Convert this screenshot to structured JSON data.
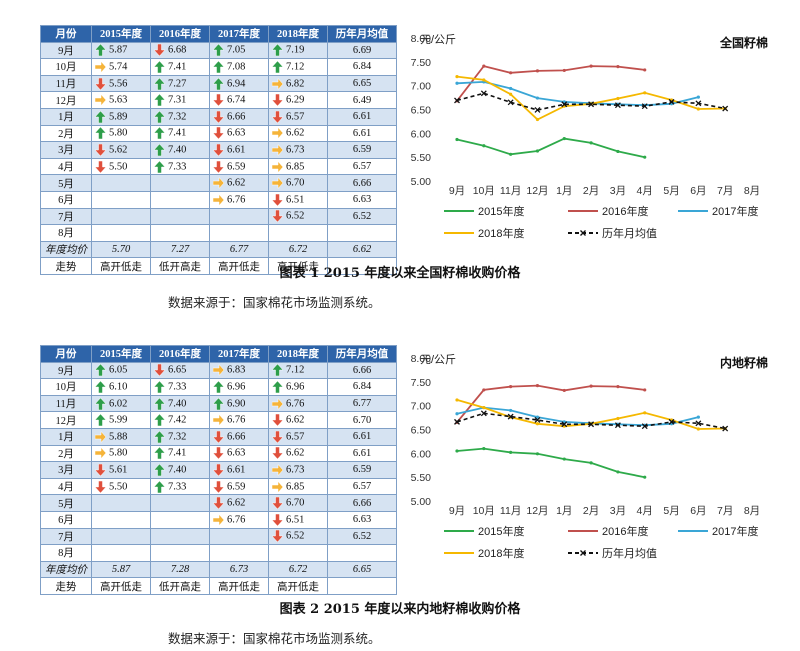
{
  "colors": {
    "header_bg": "#2e64a9",
    "row_shade": "#d6e3f2",
    "up_arrow": "#2e9e4a",
    "down_arrow": "#e0503c",
    "flat_arrow": "#f5b43a",
    "series_2015": "#2eaa4a",
    "series_2016": "#c0504d",
    "series_2017": "#3aa6d6",
    "series_2018": "#f5b800",
    "series_avg": "#111111"
  },
  "figures": [
    {
      "table": {
        "headers": [
          "月份",
          "2015年度",
          "2016年度",
          "2017年度",
          "2018年度",
          "历年月均值"
        ],
        "rows": [
          {
            "month": "9月",
            "cells": [
              {
                "v": "5.87",
                "a": "up-arrow-icon"
              },
              {
                "v": "6.68",
                "a": "down-arrow-icon"
              },
              {
                "v": "7.05",
                "a": "up-arrow-icon"
              },
              {
                "v": "7.19",
                "a": "up-arrow-icon"
              }
            ],
            "avg": "6.69"
          },
          {
            "month": "10月",
            "cells": [
              {
                "v": "5.74",
                "a": "right-arrow-icon"
              },
              {
                "v": "7.41",
                "a": "up-arrow-icon"
              },
              {
                "v": "7.08",
                "a": "up-arrow-icon"
              },
              {
                "v": "7.12",
                "a": "up-arrow-icon"
              }
            ],
            "avg": "6.84"
          },
          {
            "month": "11月",
            "cells": [
              {
                "v": "5.56",
                "a": "down-arrow-icon"
              },
              {
                "v": "7.27",
                "a": "up-arrow-icon"
              },
              {
                "v": "6.94",
                "a": "up-arrow-icon"
              },
              {
                "v": "6.82",
                "a": "right-arrow-icon"
              }
            ],
            "avg": "6.65"
          },
          {
            "month": "12月",
            "cells": [
              {
                "v": "5.63",
                "a": "right-arrow-icon"
              },
              {
                "v": "7.31",
                "a": "up-arrow-icon"
              },
              {
                "v": "6.74",
                "a": "down-arrow-icon"
              },
              {
                "v": "6.29",
                "a": "down-arrow-icon"
              }
            ],
            "avg": "6.49"
          },
          {
            "month": "1月",
            "cells": [
              {
                "v": "5.89",
                "a": "up-arrow-icon"
              },
              {
                "v": "7.32",
                "a": "up-arrow-icon"
              },
              {
                "v": "6.66",
                "a": "down-arrow-icon"
              },
              {
                "v": "6.57",
                "a": "down-arrow-icon"
              }
            ],
            "avg": "6.61"
          },
          {
            "month": "2月",
            "cells": [
              {
                "v": "5.80",
                "a": "up-arrow-icon"
              },
              {
                "v": "7.41",
                "a": "up-arrow-icon"
              },
              {
                "v": "6.63",
                "a": "down-arrow-icon"
              },
              {
                "v": "6.62",
                "a": "right-arrow-icon"
              }
            ],
            "avg": "6.61"
          },
          {
            "month": "3月",
            "cells": [
              {
                "v": "5.62",
                "a": "down-arrow-icon"
              },
              {
                "v": "7.40",
                "a": "up-arrow-icon"
              },
              {
                "v": "6.61",
                "a": "down-arrow-icon"
              },
              {
                "v": "6.73",
                "a": "right-arrow-icon"
              }
            ],
            "avg": "6.59"
          },
          {
            "month": "4月",
            "cells": [
              {
                "v": "5.50",
                "a": "down-arrow-icon"
              },
              {
                "v": "7.33",
                "a": "up-arrow-icon"
              },
              {
                "v": "6.59",
                "a": "down-arrow-icon"
              },
              {
                "v": "6.85",
                "a": "right-arrow-icon"
              }
            ],
            "avg": "6.57"
          },
          {
            "month": "5月",
            "cells": [
              {
                "v": "",
                "a": ""
              },
              {
                "v": "",
                "a": ""
              },
              {
                "v": "6.62",
                "a": "right-arrow-icon"
              },
              {
                "v": "6.70",
                "a": "right-arrow-icon"
              }
            ],
            "avg": "6.66"
          },
          {
            "month": "6月",
            "cells": [
              {
                "v": "",
                "a": ""
              },
              {
                "v": "",
                "a": ""
              },
              {
                "v": "6.76",
                "a": "right-arrow-icon"
              },
              {
                "v": "6.51",
                "a": "down-arrow-icon"
              }
            ],
            "avg": "6.63"
          },
          {
            "month": "7月",
            "cells": [
              {
                "v": "",
                "a": ""
              },
              {
                "v": "",
                "a": ""
              },
              {
                "v": "",
                "a": ""
              },
              {
                "v": "6.52",
                "a": "down-arrow-icon"
              }
            ],
            "avg": "6.52"
          },
          {
            "month": "8月",
            "cells": [
              {
                "v": "",
                "a": ""
              },
              {
                "v": "",
                "a": ""
              },
              {
                "v": "",
                "a": ""
              },
              {
                "v": "",
                "a": ""
              }
            ],
            "avg": ""
          }
        ],
        "avg_row": {
          "label": "年度均价",
          "values": [
            "5.70",
            "7.27",
            "6.77",
            "6.72",
            "6.62"
          ]
        },
        "trend_row": {
          "label": "走势",
          "values": [
            "高开低走",
            "低开高走",
            "高开低走",
            "高开低走",
            ""
          ]
        }
      },
      "caption": "图表 1   2015 年度以来全国籽棉收购价格",
      "source": "数据来源于：国家棉花市场监测系统。"
    },
    {
      "table": {
        "headers": [
          "月份",
          "2015年度",
          "2016年度",
          "2017年度",
          "2018年度",
          "历年月均值"
        ],
        "rows": [
          {
            "month": "9月",
            "cells": [
              {
                "v": "6.05",
                "a": "up-arrow-icon"
              },
              {
                "v": "6.65",
                "a": "down-arrow-icon"
              },
              {
                "v": "6.83",
                "a": "right-arrow-icon"
              },
              {
                "v": "7.12",
                "a": "up-arrow-icon"
              }
            ],
            "avg": "6.66"
          },
          {
            "month": "10月",
            "cells": [
              {
                "v": "6.10",
                "a": "up-arrow-icon"
              },
              {
                "v": "7.33",
                "a": "up-arrow-icon"
              },
              {
                "v": "6.96",
                "a": "up-arrow-icon"
              },
              {
                "v": "6.96",
                "a": "up-arrow-icon"
              }
            ],
            "avg": "6.84"
          },
          {
            "month": "11月",
            "cells": [
              {
                "v": "6.02",
                "a": "up-arrow-icon"
              },
              {
                "v": "7.40",
                "a": "up-arrow-icon"
              },
              {
                "v": "6.90",
                "a": "up-arrow-icon"
              },
              {
                "v": "6.76",
                "a": "right-arrow-icon"
              }
            ],
            "avg": "6.77"
          },
          {
            "month": "12月",
            "cells": [
              {
                "v": "5.99",
                "a": "up-arrow-icon"
              },
              {
                "v": "7.42",
                "a": "up-arrow-icon"
              },
              {
                "v": "6.76",
                "a": "right-arrow-icon"
              },
              {
                "v": "6.62",
                "a": "down-arrow-icon"
              }
            ],
            "avg": "6.70"
          },
          {
            "month": "1月",
            "cells": [
              {
                "v": "5.88",
                "a": "right-arrow-icon"
              },
              {
                "v": "7.32",
                "a": "up-arrow-icon"
              },
              {
                "v": "6.66",
                "a": "down-arrow-icon"
              },
              {
                "v": "6.57",
                "a": "down-arrow-icon"
              }
            ],
            "avg": "6.61"
          },
          {
            "month": "2月",
            "cells": [
              {
                "v": "5.80",
                "a": "right-arrow-icon"
              },
              {
                "v": "7.41",
                "a": "up-arrow-icon"
              },
              {
                "v": "6.63",
                "a": "down-arrow-icon"
              },
              {
                "v": "6.62",
                "a": "down-arrow-icon"
              }
            ],
            "avg": "6.61"
          },
          {
            "month": "3月",
            "cells": [
              {
                "v": "5.61",
                "a": "down-arrow-icon"
              },
              {
                "v": "7.40",
                "a": "up-arrow-icon"
              },
              {
                "v": "6.61",
                "a": "down-arrow-icon"
              },
              {
                "v": "6.73",
                "a": "right-arrow-icon"
              }
            ],
            "avg": "6.59"
          },
          {
            "month": "4月",
            "cells": [
              {
                "v": "5.50",
                "a": "down-arrow-icon"
              },
              {
                "v": "7.33",
                "a": "up-arrow-icon"
              },
              {
                "v": "6.59",
                "a": "down-arrow-icon"
              },
              {
                "v": "6.85",
                "a": "right-arrow-icon"
              }
            ],
            "avg": "6.57"
          },
          {
            "month": "5月",
            "cells": [
              {
                "v": "",
                "a": ""
              },
              {
                "v": "",
                "a": ""
              },
              {
                "v": "6.62",
                "a": "down-arrow-icon"
              },
              {
                "v": "6.70",
                "a": "down-arrow-icon"
              }
            ],
            "avg": "6.66"
          },
          {
            "month": "6月",
            "cells": [
              {
                "v": "",
                "a": ""
              },
              {
                "v": "",
                "a": ""
              },
              {
                "v": "6.76",
                "a": "right-arrow-icon"
              },
              {
                "v": "6.51",
                "a": "down-arrow-icon"
              }
            ],
            "avg": "6.63"
          },
          {
            "month": "7月",
            "cells": [
              {
                "v": "",
                "a": ""
              },
              {
                "v": "",
                "a": ""
              },
              {
                "v": "",
                "a": ""
              },
              {
                "v": "6.52",
                "a": "down-arrow-icon"
              }
            ],
            "avg": "6.52"
          },
          {
            "month": "8月",
            "cells": [
              {
                "v": "",
                "a": ""
              },
              {
                "v": "",
                "a": ""
              },
              {
                "v": "",
                "a": ""
              },
              {
                "v": "",
                "a": ""
              }
            ],
            "avg": ""
          }
        ],
        "avg_row": {
          "label": "年度均价",
          "values": [
            "5.87",
            "7.28",
            "6.73",
            "6.72",
            "6.65"
          ]
        },
        "trend_row": {
          "label": "走势",
          "values": [
            "高开低走",
            "低开高走",
            "高开低走",
            "高开低走",
            ""
          ]
        }
      },
      "caption": "图表 2   2015 年度以来内地籽棉收购价格",
      "source": "数据来源于：国家棉花市场监测系统。"
    }
  ],
  "chart_data": [
    {
      "type": "line",
      "title": "全国籽棉",
      "ylabel": "元/公斤",
      "categories": [
        "9月",
        "10月",
        "11月",
        "12月",
        "1月",
        "2月",
        "3月",
        "4月",
        "5月",
        "6月",
        "7月",
        "8月"
      ],
      "yticks": [
        "5.00",
        "5.50",
        "6.00",
        "6.50",
        "7.00",
        "7.50",
        "8.00"
      ],
      "ylim": [
        5.0,
        8.0
      ],
      "grid": false,
      "legend": "bottom",
      "series": [
        {
          "name": "2015年度",
          "color": "#2eaa4a",
          "marker": "dot",
          "values": [
            5.87,
            5.74,
            5.56,
            5.63,
            5.89,
            5.8,
            5.62,
            5.5,
            null,
            null,
            null,
            null
          ]
        },
        {
          "name": "2016年度",
          "color": "#c0504d",
          "marker": "dot",
          "values": [
            6.68,
            7.41,
            7.27,
            7.31,
            7.32,
            7.41,
            7.4,
            7.33,
            null,
            null,
            null,
            null
          ]
        },
        {
          "name": "2017年度",
          "color": "#3aa6d6",
          "marker": "dot",
          "values": [
            7.05,
            7.08,
            6.94,
            6.74,
            6.66,
            6.63,
            6.61,
            6.59,
            6.62,
            6.76,
            null,
            null
          ]
        },
        {
          "name": "2018年度",
          "color": "#f5b800",
          "marker": "dot",
          "values": [
            7.19,
            7.12,
            6.82,
            6.29,
            6.57,
            6.62,
            6.73,
            6.85,
            6.7,
            6.51,
            6.52,
            null
          ]
        },
        {
          "name": "历年月均值",
          "color": "#111111",
          "marker": "x",
          "dashed": true,
          "values": [
            6.69,
            6.84,
            6.65,
            6.49,
            6.61,
            6.61,
            6.59,
            6.57,
            6.66,
            6.63,
            6.52,
            null
          ]
        }
      ]
    },
    {
      "type": "line",
      "title": "内地籽棉",
      "ylabel": "元/公斤",
      "categories": [
        "9月",
        "10月",
        "11月",
        "12月",
        "1月",
        "2月",
        "3月",
        "4月",
        "5月",
        "6月",
        "7月",
        "8月"
      ],
      "yticks": [
        "5.00",
        "5.50",
        "6.00",
        "6.50",
        "7.00",
        "7.50",
        "8.00"
      ],
      "ylim": [
        5.0,
        8.0
      ],
      "grid": false,
      "legend": "bottom",
      "series": [
        {
          "name": "2015年度",
          "color": "#2eaa4a",
          "marker": "dot",
          "values": [
            6.05,
            6.1,
            6.02,
            5.99,
            5.88,
            5.8,
            5.61,
            5.5,
            null,
            null,
            null,
            null
          ]
        },
        {
          "name": "2016年度",
          "color": "#c0504d",
          "marker": "dot",
          "values": [
            6.65,
            7.33,
            7.4,
            7.42,
            7.32,
            7.41,
            7.4,
            7.33,
            null,
            null,
            null,
            null
          ]
        },
        {
          "name": "2017年度",
          "color": "#3aa6d6",
          "marker": "dot",
          "values": [
            6.83,
            6.96,
            6.9,
            6.76,
            6.66,
            6.63,
            6.61,
            6.59,
            6.62,
            6.76,
            null,
            null
          ]
        },
        {
          "name": "2018年度",
          "color": "#f5b800",
          "marker": "dot",
          "values": [
            7.12,
            6.96,
            6.76,
            6.62,
            6.57,
            6.62,
            6.73,
            6.85,
            6.7,
            6.51,
            6.52,
            null
          ]
        },
        {
          "name": "历年月均值",
          "color": "#111111",
          "marker": "x",
          "dashed": true,
          "values": [
            6.66,
            6.84,
            6.77,
            6.7,
            6.61,
            6.61,
            6.59,
            6.57,
            6.66,
            6.63,
            6.52,
            null
          ]
        }
      ]
    }
  ]
}
